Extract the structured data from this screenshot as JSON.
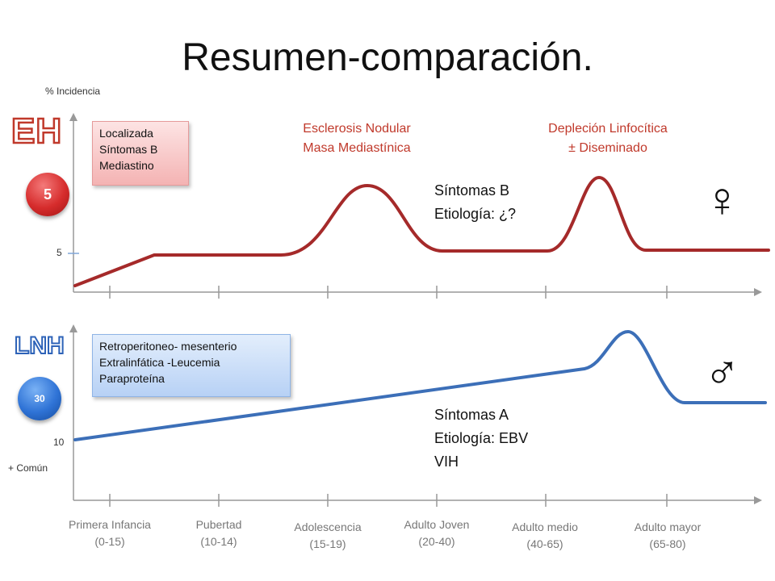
{
  "slide": {
    "title": "Resumen-comparación.",
    "y_axis_label": "% Incidencia",
    "y_axis_note": "+ Común"
  },
  "eh_panel": {
    "tag": "EH",
    "incidence_badge": "5",
    "tick_label": "5",
    "box_lines": [
      "Localizada",
      "Síntomas B",
      "Mediastino"
    ],
    "peak1_lines": [
      "Esclerosis Nodular",
      "Masa Mediastínica"
    ],
    "peak2_lines": [
      "Depleción Linfocítica",
      "± Diseminado"
    ],
    "symptoms_lines": [
      "Síntomas B",
      "Etiología: ¿?"
    ],
    "gender_symbol": "♀",
    "line_color": "#a52a2a"
  },
  "lnh_panel": {
    "tag": "LNH",
    "incidence_badge": "30",
    "tick_label": "10",
    "box_lines": [
      "Retroperitoneo- mesenterio",
      "Extralinfática -Leucemia",
      "Paraproteína"
    ],
    "symptoms_lines": [
      "Síntomas A",
      "Etiología: EBV",
      "VIH"
    ],
    "gender_symbol": "♂",
    "line_color": "#3c6fb8"
  },
  "x_categories": [
    [
      "Primera Infancia",
      "(0-15)"
    ],
    [
      "Pubertad",
      "(10-14)"
    ],
    [
      "Adolescencia",
      "(15-19)"
    ],
    [
      "Adulto Joven",
      "(20-40)"
    ],
    [
      "Adulto medio",
      "(40-65)"
    ],
    [
      "Adulto mayor",
      "(65-80)"
    ]
  ],
  "chart_data": [
    {
      "type": "line",
      "series": [
        {
          "name": "EH",
          "shape": [
            "start-low",
            "rise",
            "plateau",
            "peak-adolescencia-adulto-joven",
            "plateau",
            "peak-adulto-medio",
            "plateau"
          ]
        }
      ],
      "ylabel": "% Incidencia",
      "categories": [
        "Primera Infancia (0-15)",
        "Pubertad (10-14)",
        "Adolescencia (15-19)",
        "Adulto Joven (20-40)",
        "Adulto medio (40-65)",
        "Adulto mayor (65-80)"
      ]
    },
    {
      "type": "line",
      "series": [
        {
          "name": "LNH",
          "shape": [
            "start-low",
            "steady-rise",
            "peak-adulto-mayor",
            "plateau"
          ]
        }
      ],
      "categories": [
        "Primera Infancia (0-15)",
        "Pubertad (10-14)",
        "Adolescencia (15-19)",
        "Adulto Joven (20-40)",
        "Adulto medio (40-65)",
        "Adulto mayor (65-80)"
      ]
    }
  ]
}
